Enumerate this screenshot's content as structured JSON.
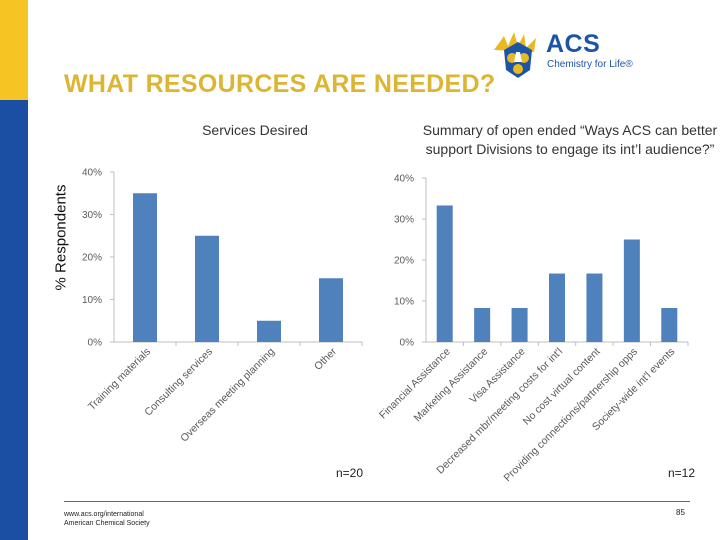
{
  "slide": {
    "title": "WHAT RESOURCES ARE NEEDED?",
    "y_axis_label": "% Respondents",
    "footer_url": "www.acs.org/international",
    "footer_org": "American Chemical Society",
    "page_number": "85"
  },
  "logo": {
    "name": "ACS",
    "tagline": "Chemistry for Life®",
    "seal_lettering": [
      "A",
      "C",
      "S"
    ],
    "colors": {
      "blue": "#1d55a6",
      "gold": "#e8b923"
    }
  },
  "colors": {
    "accent_yellow": "#f5c623",
    "accent_blue": "#1a4fa3",
    "title_gold": "#dcb532",
    "bar_blue": "#4f81bd"
  },
  "chart_data": [
    {
      "type": "bar",
      "title": "Services Desired",
      "categories": [
        "Training materials",
        "Consulting services",
        "Overseas meeting planning",
        "Other"
      ],
      "values": [
        35,
        25,
        5,
        15
      ],
      "ylim": [
        0,
        40
      ],
      "yticks": [
        "0%",
        "10%",
        "20%",
        "30%",
        "40%"
      ],
      "n_label": "n=20",
      "grid": false
    },
    {
      "type": "bar",
      "title": "Summary of open ended “Ways ACS can better support Divisions to engage its int’l audience?”",
      "categories": [
        "Financial Assistance",
        "Marketing Assistance",
        "Visa Assistance",
        "Decreased mbr/meeting costs for int'l",
        "No cost virtual content",
        "Providing connections/partnership opps",
        "Society-wide int'l events"
      ],
      "values": [
        33.3,
        8.3,
        8.3,
        16.7,
        16.7,
        25,
        8.3
      ],
      "ylim": [
        0,
        40
      ],
      "yticks": [
        "0%",
        "10%",
        "20%",
        "30%",
        "40%"
      ],
      "n_label": "n=12",
      "grid": false
    }
  ]
}
